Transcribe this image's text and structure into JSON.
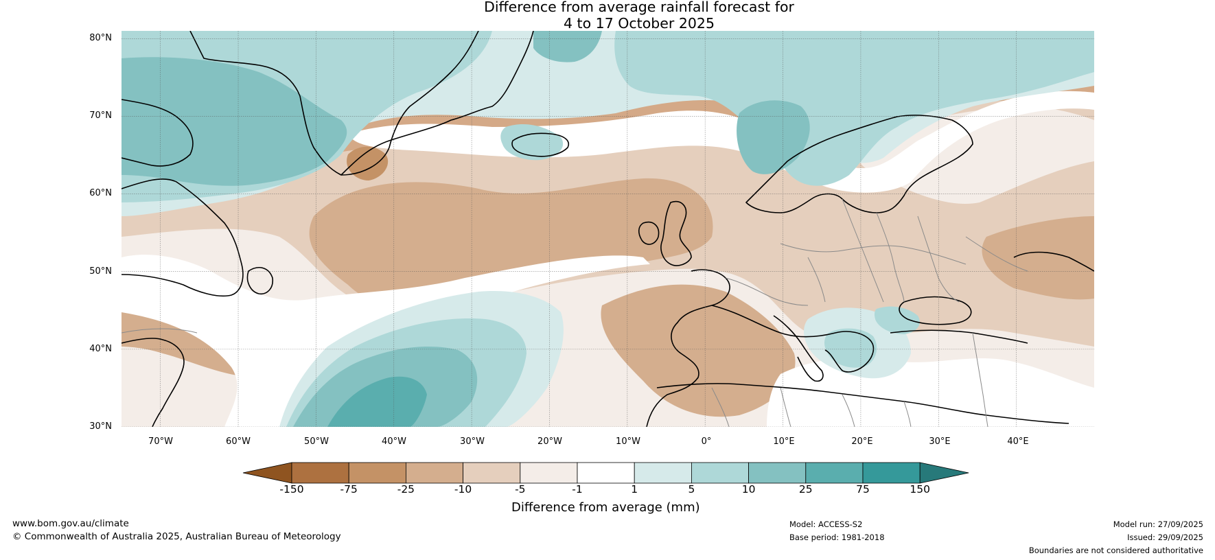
{
  "title": {
    "line1": "Difference from average rainfall forecast for",
    "line2": "4 to 17 October 2025"
  },
  "map": {
    "lat_labels": [
      "80°N",
      "70°N",
      "60°N",
      "50°N",
      "40°N",
      "30°N"
    ],
    "lon_labels": [
      "70°W",
      "60°W",
      "50°W",
      "40°W",
      "30°W",
      "20°W",
      "10°W",
      "0°",
      "10°E",
      "20°E",
      "30°E",
      "40°E"
    ],
    "lat_range": [
      30,
      81
    ],
    "lon_range": [
      -75,
      50
    ],
    "gridlines": true
  },
  "colorbar": {
    "title": "Difference from average (mm)",
    "ticks": [
      "-150",
      "-75",
      "-25",
      "-10",
      "-5",
      "-1",
      "1",
      "5",
      "10",
      "25",
      "75",
      "150"
    ],
    "colors": [
      "#8f5420",
      "#ad7140",
      "#c49266",
      "#d4ae8e",
      "#e5cfbd",
      "#f4ede8",
      "#ffffff",
      "#d6eaea",
      "#aed8d8",
      "#84c1c1",
      "#5aaeae",
      "#35999a",
      "#27797a"
    ]
  },
  "footer": {
    "website": "www.bom.gov.au/climate",
    "copyright": "© Commonwealth of Australia 2025, Australian Bureau of Meteorology",
    "model": "Model: ACCESS-S2",
    "base_period": "Base period: 1981-2018",
    "model_run": "Model run: 27/09/2025",
    "issued": "Issued: 29/09/2025",
    "disclaimer": "Boundaries are not considered authoritative"
  }
}
